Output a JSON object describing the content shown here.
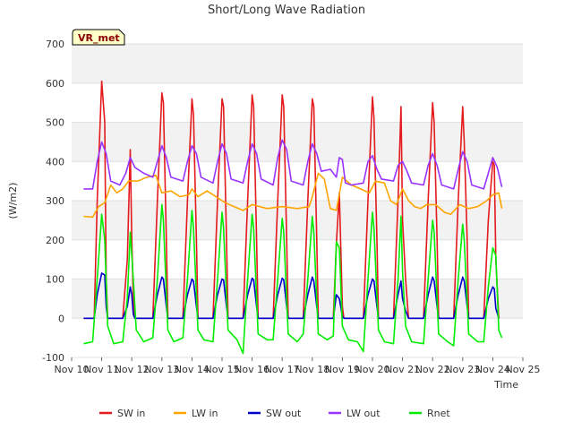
{
  "chart_data": {
    "type": "line",
    "title": "Short/Long Wave Radiation",
    "xlabel": "Time",
    "ylabel": "(W/m2)",
    "badge": "VR_met",
    "ylim": [
      -100,
      700
    ],
    "yticks": [
      -100,
      0,
      100,
      200,
      300,
      400,
      500,
      600,
      700
    ],
    "xlim": [
      10,
      25
    ],
    "xticks": [
      {
        "value": 10,
        "label": "Nov 10"
      },
      {
        "value": 11,
        "label": "Nov 11"
      },
      {
        "value": 12,
        "label": "Nov 12"
      },
      {
        "value": 13,
        "label": "Nov 13"
      },
      {
        "value": 14,
        "label": "Nov 14"
      },
      {
        "value": 15,
        "label": "Nov 15"
      },
      {
        "value": 16,
        "label": "Nov 16"
      },
      {
        "value": 17,
        "label": "Nov 17"
      },
      {
        "value": 18,
        "label": "Nov 18"
      },
      {
        "value": 19,
        "label": "Nov 19"
      },
      {
        "value": 20,
        "label": "Nov 20"
      },
      {
        "value": 21,
        "label": "Nov 21"
      },
      {
        "value": 22,
        "label": "Nov 22"
      },
      {
        "value": 23,
        "label": "Nov 23"
      },
      {
        "value": 24,
        "label": "Nov 24"
      },
      {
        "value": 25,
        "label": "Nov 25"
      }
    ],
    "legend_position": "bottom-center",
    "grid": true,
    "series": [
      {
        "name": "SW in",
        "color": "#e41a1c",
        "x": [
          10.4,
          10.75,
          10.85,
          11.0,
          11.1,
          11.15,
          11.2,
          11.7,
          11.85,
          11.95,
          12.0,
          12.05,
          12.1,
          12.7,
          12.85,
          13.0,
          13.05,
          13.15,
          13.2,
          13.7,
          13.85,
          14.0,
          14.05,
          14.15,
          14.2,
          14.7,
          14.85,
          15.0,
          15.05,
          15.15,
          15.2,
          15.7,
          15.85,
          16.0,
          16.05,
          16.15,
          16.2,
          16.7,
          16.85,
          17.0,
          17.05,
          17.15,
          17.2,
          17.7,
          17.85,
          18.0,
          18.05,
          18.15,
          18.2,
          18.7,
          18.8,
          18.9,
          19.0,
          19.05,
          19.1,
          19.7,
          19.85,
          20.0,
          20.05,
          20.15,
          20.2,
          20.7,
          20.85,
          20.95,
          21.0,
          21.1,
          21.2,
          21.7,
          21.85,
          22.0,
          22.05,
          22.15,
          22.2,
          22.7,
          22.85,
          23.0,
          23.05,
          23.15,
          23.2,
          23.7,
          23.85,
          24.0,
          24.05,
          24.1,
          24.2
        ],
        "y": [
          0,
          0,
          300,
          605,
          500,
          100,
          0,
          0,
          150,
          430,
          200,
          50,
          0,
          0,
          300,
          575,
          550,
          200,
          0,
          0,
          300,
          560,
          520,
          200,
          0,
          0,
          300,
          560,
          540,
          200,
          0,
          0,
          300,
          570,
          540,
          200,
          0,
          0,
          300,
          570,
          540,
          200,
          0,
          0,
          300,
          560,
          540,
          200,
          0,
          0,
          190,
          320,
          30,
          0,
          0,
          0,
          300,
          565,
          510,
          200,
          0,
          0,
          300,
          540,
          250,
          100,
          0,
          0,
          300,
          550,
          500,
          200,
          0,
          0,
          300,
          540,
          450,
          200,
          0,
          0,
          250,
          400,
          390,
          150,
          0
        ]
      },
      {
        "name": "LW in",
        "color": "#ffa500",
        "x": [
          10.4,
          10.7,
          10.9,
          11.1,
          11.3,
          11.5,
          11.7,
          11.9,
          12.2,
          12.5,
          12.8,
          13.0,
          13.3,
          13.6,
          13.9,
          14.0,
          14.2,
          14.5,
          14.8,
          15.1,
          15.4,
          15.7,
          16.0,
          16.5,
          17.0,
          17.5,
          17.9,
          18.0,
          18.2,
          18.4,
          18.6,
          18.8,
          19.0,
          19.3,
          19.6,
          19.9,
          20.1,
          20.4,
          20.6,
          20.8,
          21.0,
          21.2,
          21.4,
          21.6,
          21.8,
          22.1,
          22.4,
          22.6,
          22.9,
          23.2,
          23.5,
          23.8,
          24.0,
          24.2,
          24.3
        ],
        "y": [
          260,
          258,
          285,
          295,
          340,
          320,
          330,
          350,
          350,
          360,
          365,
          320,
          325,
          310,
          315,
          330,
          310,
          325,
          310,
          295,
          285,
          275,
          290,
          280,
          285,
          280,
          285,
          310,
          370,
          355,
          280,
          275,
          360,
          340,
          330,
          320,
          350,
          345,
          300,
          290,
          330,
          300,
          285,
          280,
          290,
          290,
          270,
          265,
          290,
          280,
          285,
          300,
          315,
          320,
          280
        ]
      },
      {
        "name": "SW out",
        "color": "#0000cc",
        "x": [
          10.4,
          10.75,
          10.85,
          11.0,
          11.1,
          11.15,
          11.2,
          11.7,
          11.85,
          11.95,
          12.0,
          12.05,
          12.1,
          12.7,
          12.85,
          13.0,
          13.05,
          13.15,
          13.2,
          13.7,
          13.85,
          14.0,
          14.05,
          14.15,
          14.2,
          14.7,
          14.85,
          15.0,
          15.05,
          15.15,
          15.2,
          15.7,
          15.85,
          16.0,
          16.05,
          16.15,
          16.2,
          16.7,
          16.85,
          17.0,
          17.05,
          17.15,
          17.2,
          17.7,
          17.85,
          18.0,
          18.05,
          18.15,
          18.2,
          18.7,
          18.8,
          18.9,
          19.0,
          19.05,
          19.1,
          19.7,
          19.85,
          20.0,
          20.05,
          20.15,
          20.2,
          20.7,
          20.85,
          20.95,
          21.0,
          21.1,
          21.2,
          21.7,
          21.85,
          22.0,
          22.05,
          22.15,
          22.2,
          22.7,
          22.85,
          23.0,
          23.05,
          23.15,
          23.2,
          23.7,
          23.85,
          24.0,
          24.05,
          24.1,
          24.2
        ],
        "y": [
          0,
          0,
          60,
          115,
          110,
          30,
          0,
          0,
          30,
          80,
          60,
          10,
          0,
          0,
          60,
          105,
          100,
          30,
          0,
          0,
          60,
          100,
          95,
          30,
          0,
          0,
          60,
          100,
          98,
          30,
          0,
          0,
          60,
          102,
          98,
          30,
          0,
          0,
          60,
          102,
          98,
          30,
          0,
          0,
          60,
          105,
          95,
          30,
          0,
          0,
          60,
          50,
          5,
          0,
          0,
          0,
          60,
          100,
          95,
          30,
          0,
          0,
          60,
          95,
          50,
          20,
          0,
          0,
          60,
          105,
          95,
          30,
          0,
          0,
          60,
          105,
          95,
          30,
          0,
          0,
          50,
          80,
          75,
          25,
          0
        ]
      },
      {
        "name": "LW out",
        "color": "#9933ff",
        "x": [
          10.4,
          10.7,
          10.85,
          11.0,
          11.15,
          11.3,
          11.6,
          11.8,
          11.95,
          12.1,
          12.4,
          12.7,
          12.85,
          13.0,
          13.15,
          13.3,
          13.7,
          13.85,
          14.0,
          14.15,
          14.3,
          14.7,
          14.85,
          15.0,
          15.15,
          15.3,
          15.7,
          15.85,
          16.0,
          16.15,
          16.3,
          16.7,
          16.85,
          17.0,
          17.15,
          17.3,
          17.7,
          17.85,
          18.0,
          18.15,
          18.3,
          18.6,
          18.8,
          18.9,
          19.0,
          19.1,
          19.3,
          19.7,
          19.85,
          20.0,
          20.15,
          20.3,
          20.7,
          20.85,
          21.0,
          21.15,
          21.3,
          21.7,
          21.85,
          22.0,
          22.15,
          22.3,
          22.7,
          22.85,
          23.0,
          23.15,
          23.3,
          23.7,
          23.85,
          24.0,
          24.15,
          24.3
        ],
        "y": [
          330,
          330,
          400,
          450,
          420,
          350,
          340,
          370,
          410,
          385,
          370,
          360,
          400,
          440,
          410,
          360,
          350,
          400,
          440,
          420,
          360,
          345,
          400,
          445,
          420,
          355,
          345,
          400,
          445,
          420,
          355,
          340,
          410,
          455,
          430,
          350,
          340,
          400,
          445,
          420,
          375,
          380,
          360,
          410,
          405,
          345,
          340,
          345,
          400,
          415,
          380,
          355,
          350,
          390,
          400,
          375,
          345,
          340,
          390,
          420,
          390,
          340,
          330,
          380,
          425,
          400,
          340,
          330,
          370,
          410,
          385,
          335
        ]
      },
      {
        "name": "Rnet",
        "color": "#00ee00",
        "x": [
          10.4,
          10.7,
          10.85,
          11.0,
          11.1,
          11.2,
          11.4,
          11.7,
          11.85,
          11.95,
          12.05,
          12.15,
          12.4,
          12.7,
          12.85,
          13.0,
          13.05,
          13.2,
          13.4,
          13.7,
          13.85,
          14.0,
          14.05,
          14.2,
          14.4,
          14.7,
          14.85,
          15.0,
          15.05,
          15.2,
          15.5,
          15.7,
          15.85,
          16.0,
          16.05,
          16.2,
          16.5,
          16.7,
          16.85,
          17.0,
          17.05,
          17.2,
          17.5,
          17.7,
          17.85,
          18.0,
          18.05,
          18.2,
          18.5,
          18.7,
          18.8,
          18.9,
          19.0,
          19.2,
          19.5,
          19.7,
          19.85,
          20.0,
          20.05,
          20.2,
          20.4,
          20.7,
          20.85,
          20.95,
          21.0,
          21.1,
          21.3,
          21.7,
          21.85,
          22.0,
          22.05,
          22.2,
          22.5,
          22.7,
          22.85,
          23.0,
          23.05,
          23.2,
          23.5,
          23.7,
          23.85,
          24.0,
          24.1,
          24.2,
          24.3
        ],
        "y": [
          -65,
          -60,
          100,
          265,
          200,
          -20,
          -65,
          -60,
          50,
          220,
          100,
          -30,
          -60,
          -50,
          100,
          290,
          250,
          -30,
          -60,
          -50,
          100,
          275,
          230,
          -30,
          -55,
          -60,
          100,
          270,
          230,
          -30,
          -55,
          -90,
          100,
          265,
          230,
          -40,
          -55,
          -55,
          100,
          255,
          220,
          -40,
          -60,
          -40,
          100,
          260,
          220,
          -40,
          -55,
          -45,
          195,
          180,
          -20,
          -55,
          -60,
          -85,
          100,
          270,
          230,
          -30,
          -60,
          -65,
          100,
          260,
          120,
          -20,
          -60,
          -65,
          100,
          250,
          220,
          -40,
          -60,
          -70,
          100,
          240,
          200,
          -40,
          -60,
          -60,
          80,
          180,
          160,
          -30,
          -50
        ]
      }
    ]
  }
}
